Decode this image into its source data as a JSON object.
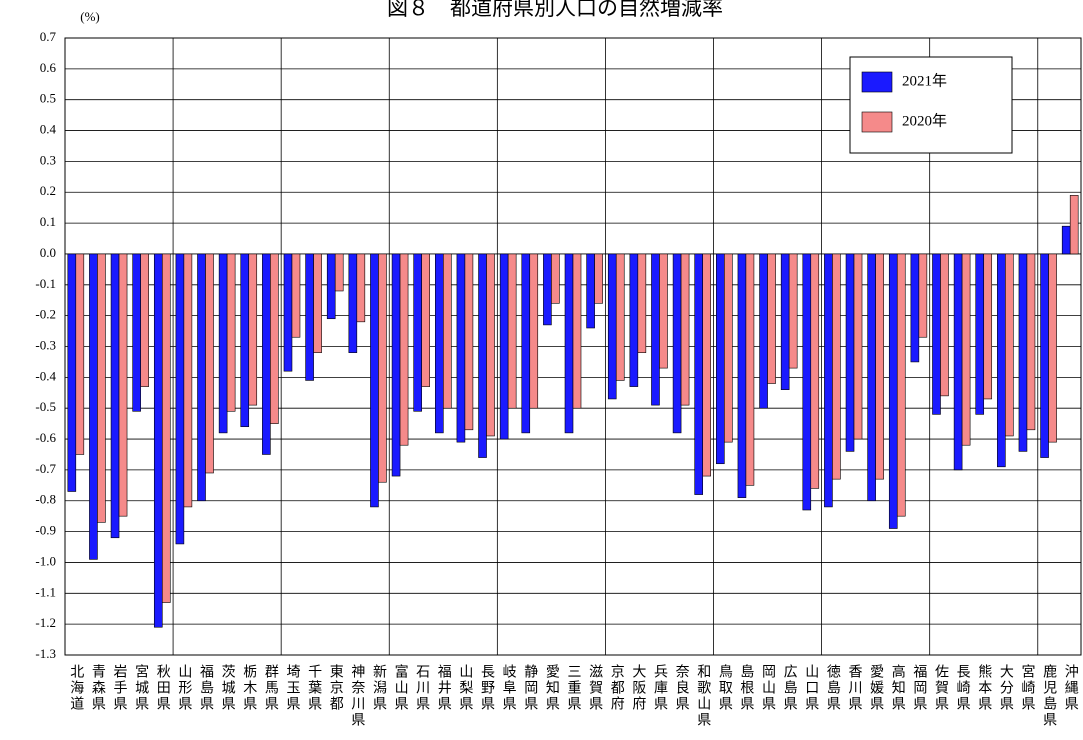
{
  "chart_data": {
    "type": "bar",
    "title": "図８　都道府県別人口の自然増減率",
    "y_unit": "(%)",
    "categories": [
      "北海道",
      "青森県",
      "岩手県",
      "宮城県",
      "秋田県",
      "山形県",
      "福島県",
      "茨城県",
      "栃木県",
      "群馬県",
      "埼玉県",
      "千葉県",
      "東京都",
      "神奈川県",
      "新潟県",
      "富山県",
      "石川県",
      "福井県",
      "山梨県",
      "長野県",
      "岐阜県",
      "静岡県",
      "愛知県",
      "三重県",
      "滋賀県",
      "京都府",
      "大阪府",
      "兵庫県",
      "奈良県",
      "和歌山県",
      "鳥取県",
      "島根県",
      "岡山県",
      "広島県",
      "山口県",
      "徳島県",
      "香川県",
      "愛媛県",
      "高知県",
      "福岡県",
      "佐賀県",
      "長崎県",
      "熊本県",
      "大分県",
      "宮崎県",
      "鹿児島県",
      "沖縄県"
    ],
    "series": [
      {
        "name": "2021年",
        "color": "#1a1aff",
        "values": [
          -0.77,
          -0.99,
          -0.92,
          -0.51,
          -1.21,
          -0.94,
          -0.8,
          -0.58,
          -0.56,
          -0.65,
          -0.38,
          -0.41,
          -0.21,
          -0.32,
          -0.82,
          -0.72,
          -0.51,
          -0.58,
          -0.61,
          -0.66,
          -0.6,
          -0.58,
          -0.23,
          -0.58,
          -0.24,
          -0.47,
          -0.43,
          -0.49,
          -0.58,
          -0.78,
          -0.68,
          -0.79,
          -0.5,
          -0.44,
          -0.83,
          -0.82,
          -0.64,
          -0.8,
          -0.89,
          -0.35,
          -0.52,
          -0.7,
          -0.52,
          -0.69,
          -0.64,
          -0.66,
          0.09
        ]
      },
      {
        "name": "2020年",
        "color": "#f58a8a",
        "values": [
          -0.65,
          -0.87,
          -0.85,
          -0.43,
          -1.13,
          -0.82,
          -0.71,
          -0.51,
          -0.49,
          -0.55,
          -0.27,
          -0.32,
          -0.12,
          -0.22,
          -0.74,
          -0.62,
          -0.43,
          -0.5,
          -0.57,
          -0.59,
          -0.5,
          -0.5,
          -0.16,
          -0.5,
          -0.16,
          -0.41,
          -0.32,
          -0.37,
          -0.49,
          -0.72,
          -0.61,
          -0.75,
          -0.42,
          -0.37,
          -0.76,
          -0.73,
          -0.6,
          -0.73,
          -0.85,
          -0.27,
          -0.46,
          -0.62,
          -0.47,
          -0.59,
          -0.57,
          -0.61,
          0.19
        ]
      }
    ],
    "ylim": [
      -1.3,
      0.7
    ],
    "yticks": [
      0.7,
      0.6,
      0.5,
      0.4,
      0.3,
      0.2,
      0.1,
      {
        "value": 0,
        "label": "0.0"
      },
      -0.1,
      -0.2,
      -0.3,
      -0.4,
      -0.5,
      -0.6,
      -0.7,
      -0.8,
      -0.9,
      {
        "value": -1,
        "label": "-1.0"
      },
      -1.1,
      -1.2,
      -1.3
    ],
    "grid": true,
    "vertical_grid_every": 5,
    "legend_position": "upper right"
  }
}
